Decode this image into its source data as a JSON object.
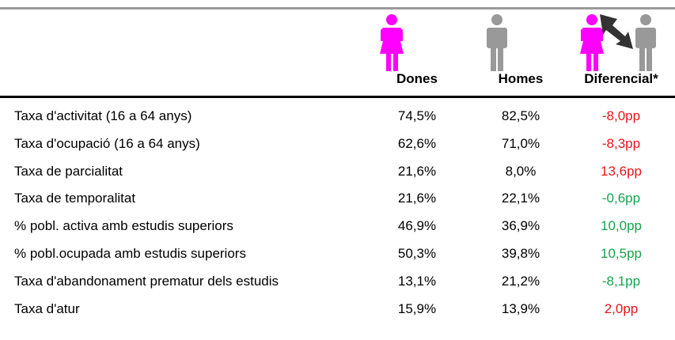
{
  "table": {
    "header": [
      "Dones",
      "Homes",
      "Diferencial*"
    ],
    "rows": [
      {
        "label": "Taxa d'activitat (16 a 64 anys)",
        "dones": "74,5%",
        "homes": "82,5%",
        "diferencial": "-8,0pp",
        "color": "#e8141c"
      },
      {
        "label": "Taxa d'ocupació (16 a 64 anys)",
        "dones": "62,6%",
        "homes": "71,0%",
        "diferencial": "-8,3pp",
        "color": "#e8141c"
      },
      {
        "label": "Taxa de parcialitat",
        "dones": "21,6%",
        "homes": "8,0%",
        "diferencial": "13,6pp",
        "color": "#e8141c"
      },
      {
        "label": "Taxa de temporalitat",
        "dones": "21,6%",
        "homes": "22,1%",
        "diferencial": "-0,6pp",
        "color": "#12a54a"
      },
      {
        "label": "% pobl. activa amb estudis superiors",
        "dones": "46,9%",
        "homes": "36,9%",
        "diferencial": "10,0pp",
        "color": "#12a54a"
      },
      {
        "label": "% pobl.ocupada amb estudis superiors",
        "dones": "50,3%",
        "homes": "39,8%",
        "diferencial": "10,5pp",
        "color": "#12a54a"
      },
      {
        "label": "Taxa d'abandonament prematur dels estudis",
        "dones": "13,1%",
        "homes": "21,2%",
        "diferencial": "-8,1pp",
        "color": "#12a54a"
      },
      {
        "label": "Taxa d'atur",
        "dones": "15,9%",
        "homes": "13,9%",
        "diferencial": "2,0pp",
        "color": "#e8141c"
      }
    ]
  }
}
